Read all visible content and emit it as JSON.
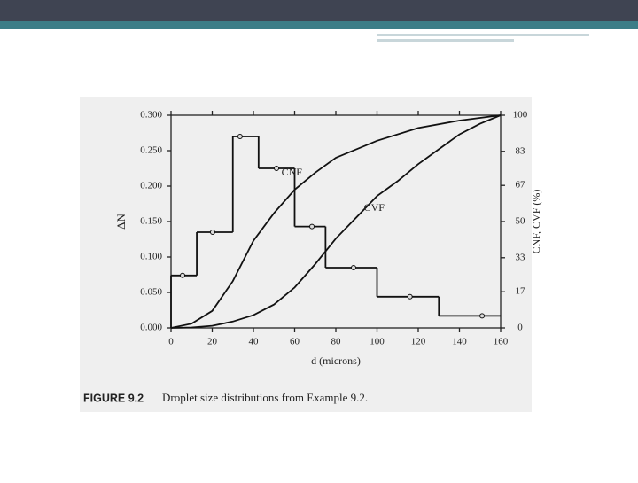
{
  "chart_data": {
    "type": "histogram",
    "xlabel": "d (microns)",
    "ylabel": "ΔN",
    "y2label": "CNF, CVF (%)",
    "caption_label": "FIGURE 9.2",
    "caption": "Droplet size distributions from Example 9.2.",
    "bins": [
      0,
      12.5,
      30,
      42.5,
      60,
      75,
      100,
      130,
      160
    ],
    "values": [
      0.074,
      0.135,
      0.27,
      0.225,
      0.143,
      0.085,
      0.044,
      0.017
    ],
    "x": [
      5.6,
      20.2,
      33.5,
      51.2,
      68.4,
      88.6,
      116,
      151
    ],
    "color": "#111111",
    "curves": [
      {
        "name": "CNF",
        "axis": "y2",
        "color": "#111111",
        "x": [
          0,
          10,
          20,
          30,
          40,
          50,
          60,
          70,
          80,
          100,
          120,
          140,
          160
        ],
        "values": [
          0,
          2,
          8,
          22,
          41,
          54,
          65,
          73,
          80,
          88,
          94,
          97.5,
          100
        ]
      },
      {
        "name": "CVF",
        "axis": "y2",
        "color": "#111111",
        "x": [
          0,
          10,
          20,
          30,
          40,
          50,
          60,
          70,
          80,
          90,
          100,
          110,
          120,
          130,
          140,
          150,
          160
        ],
        "values": [
          0,
          0.2,
          1,
          3,
          6,
          11,
          19,
          30,
          42,
          52,
          62,
          69,
          77,
          84,
          91,
          96,
          100
        ]
      }
    ],
    "xlim": [
      0,
      160
    ],
    "xticks": [
      0,
      20,
      40,
      60,
      80,
      100,
      120,
      140,
      160
    ],
    "ylim": [
      0,
      0.3
    ],
    "yticks": [
      {
        "value": 0,
        "label": "0.000"
      },
      {
        "value": 0.05,
        "label": "0.050"
      },
      {
        "value": 0.1,
        "label": "0.100"
      },
      {
        "value": 0.15,
        "label": "0.150"
      },
      {
        "value": 0.2,
        "label": "0.200"
      },
      {
        "value": 0.25,
        "label": "0.250"
      },
      {
        "value": 0.3,
        "label": "0.300"
      }
    ],
    "y2lim": [
      0,
      100
    ],
    "y2ticks": [
      0,
      17,
      33,
      50,
      67,
      83,
      100
    ]
  }
}
